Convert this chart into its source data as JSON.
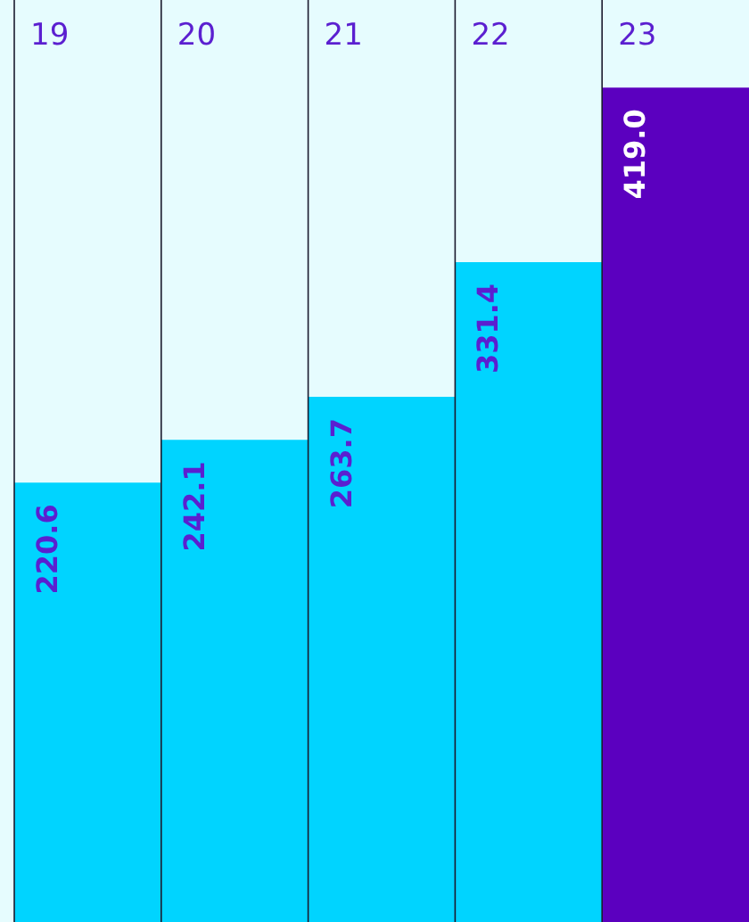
{
  "chart_data": {
    "type": "bar",
    "categories": [
      "19",
      "20",
      "21",
      "22",
      "23"
    ],
    "values": [
      220.6,
      242.1,
      263.7,
      331.4,
      419.0
    ],
    "value_labels": [
      "220.6",
      "242.1",
      "263.7",
      "331.4",
      "419.0"
    ],
    "colors": [
      "#00d4ff",
      "#00d4ff",
      "#00d4ff",
      "#00d4ff",
      "#5b00bf"
    ],
    "ylim": [
      0,
      463
    ],
    "grid": "x"
  }
}
